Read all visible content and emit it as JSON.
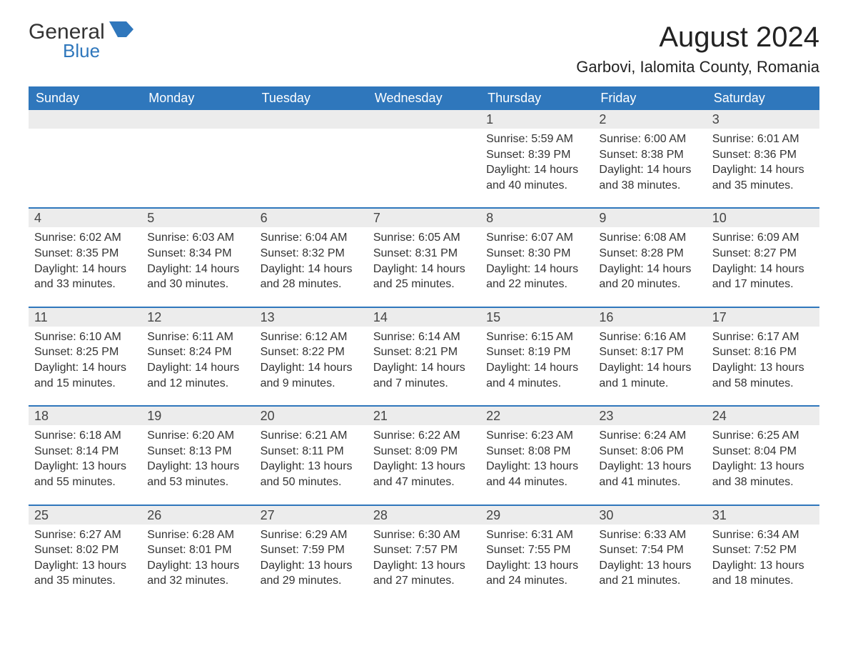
{
  "logo": {
    "word1": "General",
    "word2": "Blue",
    "shape_color": "#2f77bc"
  },
  "title": "August 2024",
  "location": "Garbovi, Ialomita County, Romania",
  "colors": {
    "header_bg": "#2f77bc",
    "header_text": "#ffffff",
    "daynum_bg": "#ececec",
    "text": "#333333",
    "week_border": "#2f77bc",
    "page_bg": "#ffffff"
  },
  "fonts": {
    "month_title_pt": 40,
    "location_pt": 22,
    "dow_pt": 18,
    "daynum_pt": 18,
    "body_pt": 16
  },
  "days_of_week": [
    "Sunday",
    "Monday",
    "Tuesday",
    "Wednesday",
    "Thursday",
    "Friday",
    "Saturday"
  ],
  "weeks": [
    [
      null,
      null,
      null,
      null,
      {
        "n": "1",
        "sunrise": "Sunrise: 5:59 AM",
        "sunset": "Sunset: 8:39 PM",
        "daylight": "Daylight: 14 hours and 40 minutes."
      },
      {
        "n": "2",
        "sunrise": "Sunrise: 6:00 AM",
        "sunset": "Sunset: 8:38 PM",
        "daylight": "Daylight: 14 hours and 38 minutes."
      },
      {
        "n": "3",
        "sunrise": "Sunrise: 6:01 AM",
        "sunset": "Sunset: 8:36 PM",
        "daylight": "Daylight: 14 hours and 35 minutes."
      }
    ],
    [
      {
        "n": "4",
        "sunrise": "Sunrise: 6:02 AM",
        "sunset": "Sunset: 8:35 PM",
        "daylight": "Daylight: 14 hours and 33 minutes."
      },
      {
        "n": "5",
        "sunrise": "Sunrise: 6:03 AM",
        "sunset": "Sunset: 8:34 PM",
        "daylight": "Daylight: 14 hours and 30 minutes."
      },
      {
        "n": "6",
        "sunrise": "Sunrise: 6:04 AM",
        "sunset": "Sunset: 8:32 PM",
        "daylight": "Daylight: 14 hours and 28 minutes."
      },
      {
        "n": "7",
        "sunrise": "Sunrise: 6:05 AM",
        "sunset": "Sunset: 8:31 PM",
        "daylight": "Daylight: 14 hours and 25 minutes."
      },
      {
        "n": "8",
        "sunrise": "Sunrise: 6:07 AM",
        "sunset": "Sunset: 8:30 PM",
        "daylight": "Daylight: 14 hours and 22 minutes."
      },
      {
        "n": "9",
        "sunrise": "Sunrise: 6:08 AM",
        "sunset": "Sunset: 8:28 PM",
        "daylight": "Daylight: 14 hours and 20 minutes."
      },
      {
        "n": "10",
        "sunrise": "Sunrise: 6:09 AM",
        "sunset": "Sunset: 8:27 PM",
        "daylight": "Daylight: 14 hours and 17 minutes."
      }
    ],
    [
      {
        "n": "11",
        "sunrise": "Sunrise: 6:10 AM",
        "sunset": "Sunset: 8:25 PM",
        "daylight": "Daylight: 14 hours and 15 minutes."
      },
      {
        "n": "12",
        "sunrise": "Sunrise: 6:11 AM",
        "sunset": "Sunset: 8:24 PM",
        "daylight": "Daylight: 14 hours and 12 minutes."
      },
      {
        "n": "13",
        "sunrise": "Sunrise: 6:12 AM",
        "sunset": "Sunset: 8:22 PM",
        "daylight": "Daylight: 14 hours and 9 minutes."
      },
      {
        "n": "14",
        "sunrise": "Sunrise: 6:14 AM",
        "sunset": "Sunset: 8:21 PM",
        "daylight": "Daylight: 14 hours and 7 minutes."
      },
      {
        "n": "15",
        "sunrise": "Sunrise: 6:15 AM",
        "sunset": "Sunset: 8:19 PM",
        "daylight": "Daylight: 14 hours and 4 minutes."
      },
      {
        "n": "16",
        "sunrise": "Sunrise: 6:16 AM",
        "sunset": "Sunset: 8:17 PM",
        "daylight": "Daylight: 14 hours and 1 minute."
      },
      {
        "n": "17",
        "sunrise": "Sunrise: 6:17 AM",
        "sunset": "Sunset: 8:16 PM",
        "daylight": "Daylight: 13 hours and 58 minutes."
      }
    ],
    [
      {
        "n": "18",
        "sunrise": "Sunrise: 6:18 AM",
        "sunset": "Sunset: 8:14 PM",
        "daylight": "Daylight: 13 hours and 55 minutes."
      },
      {
        "n": "19",
        "sunrise": "Sunrise: 6:20 AM",
        "sunset": "Sunset: 8:13 PM",
        "daylight": "Daylight: 13 hours and 53 minutes."
      },
      {
        "n": "20",
        "sunrise": "Sunrise: 6:21 AM",
        "sunset": "Sunset: 8:11 PM",
        "daylight": "Daylight: 13 hours and 50 minutes."
      },
      {
        "n": "21",
        "sunrise": "Sunrise: 6:22 AM",
        "sunset": "Sunset: 8:09 PM",
        "daylight": "Daylight: 13 hours and 47 minutes."
      },
      {
        "n": "22",
        "sunrise": "Sunrise: 6:23 AM",
        "sunset": "Sunset: 8:08 PM",
        "daylight": "Daylight: 13 hours and 44 minutes."
      },
      {
        "n": "23",
        "sunrise": "Sunrise: 6:24 AM",
        "sunset": "Sunset: 8:06 PM",
        "daylight": "Daylight: 13 hours and 41 minutes."
      },
      {
        "n": "24",
        "sunrise": "Sunrise: 6:25 AM",
        "sunset": "Sunset: 8:04 PM",
        "daylight": "Daylight: 13 hours and 38 minutes."
      }
    ],
    [
      {
        "n": "25",
        "sunrise": "Sunrise: 6:27 AM",
        "sunset": "Sunset: 8:02 PM",
        "daylight": "Daylight: 13 hours and 35 minutes."
      },
      {
        "n": "26",
        "sunrise": "Sunrise: 6:28 AM",
        "sunset": "Sunset: 8:01 PM",
        "daylight": "Daylight: 13 hours and 32 minutes."
      },
      {
        "n": "27",
        "sunrise": "Sunrise: 6:29 AM",
        "sunset": "Sunset: 7:59 PM",
        "daylight": "Daylight: 13 hours and 29 minutes."
      },
      {
        "n": "28",
        "sunrise": "Sunrise: 6:30 AM",
        "sunset": "Sunset: 7:57 PM",
        "daylight": "Daylight: 13 hours and 27 minutes."
      },
      {
        "n": "29",
        "sunrise": "Sunrise: 6:31 AM",
        "sunset": "Sunset: 7:55 PM",
        "daylight": "Daylight: 13 hours and 24 minutes."
      },
      {
        "n": "30",
        "sunrise": "Sunrise: 6:33 AM",
        "sunset": "Sunset: 7:54 PM",
        "daylight": "Daylight: 13 hours and 21 minutes."
      },
      {
        "n": "31",
        "sunrise": "Sunrise: 6:34 AM",
        "sunset": "Sunset: 7:52 PM",
        "daylight": "Daylight: 13 hours and 18 minutes."
      }
    ]
  ]
}
